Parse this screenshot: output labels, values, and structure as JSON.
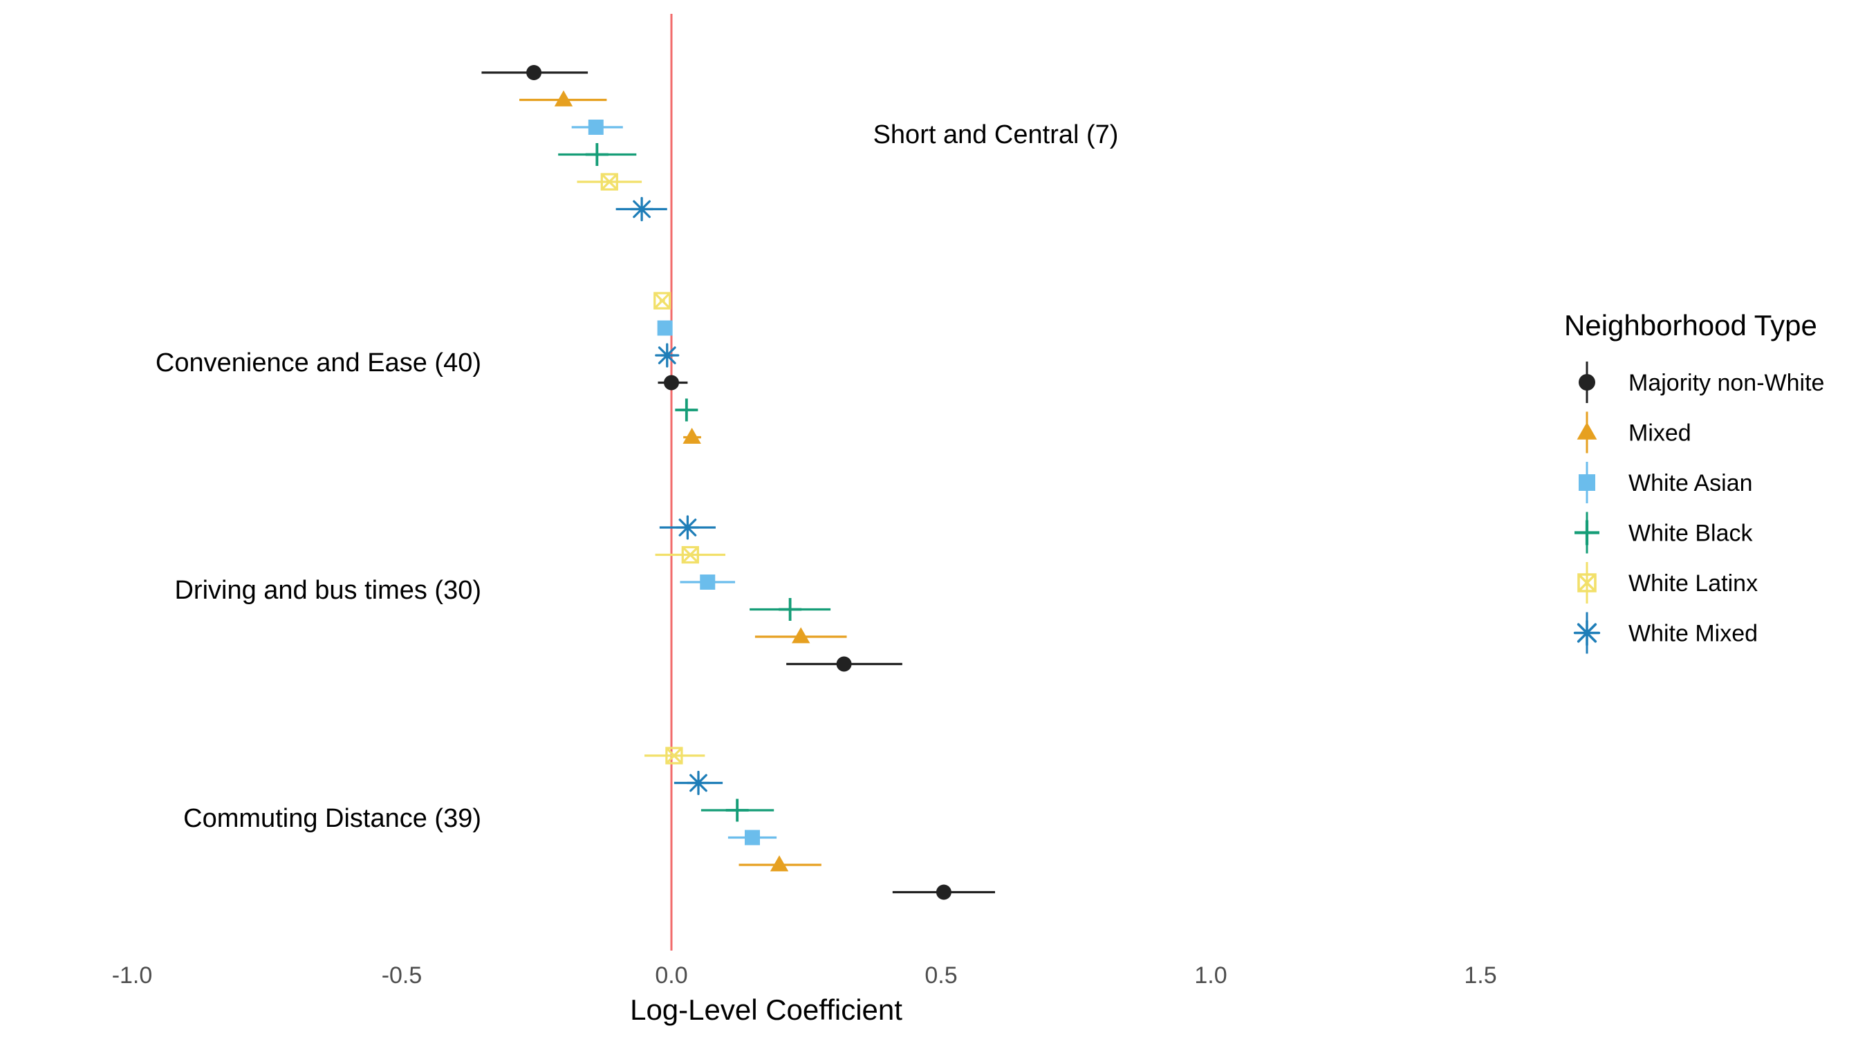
{
  "chart_data": {
    "type": "scatter",
    "subtype": "coefficient-plot",
    "xlabel": "Log-Level Coefficient",
    "ylabel": "",
    "title": "",
    "xlim": [
      -1.0,
      1.5
    ],
    "x_ticks": [
      {
        "value": -1.0,
        "label": "-1.0"
      },
      {
        "value": -0.5,
        "label": "-0.5"
      },
      {
        "value": 0.0,
        "label": "0.0"
      },
      {
        "value": 0.5,
        "label": "0.5"
      },
      {
        "value": 1.0,
        "label": "1.0"
      },
      {
        "value": 1.5,
        "label": "1.5"
      }
    ],
    "reference_line": {
      "x": 0,
      "color": "#f26b6b"
    },
    "grid": false,
    "legend": {
      "title": "Neighborhood Type",
      "position": "right"
    },
    "categories": [
      "Short and Central (7)",
      "Convenience and Ease (40)",
      "Driving and bus times (30)",
      "Commuting Distance (39)"
    ],
    "series": [
      {
        "name": "Majority non-White",
        "color": "#222222",
        "marker": "circle"
      },
      {
        "name": "Mixed",
        "color": "#e6a020",
        "marker": "triangle"
      },
      {
        "name": "White Asian",
        "color": "#6bbdec",
        "marker": "square"
      },
      {
        "name": "White Black",
        "color": "#159d77",
        "marker": "plus"
      },
      {
        "name": "White Latinx",
        "color": "#f2e06a",
        "marker": "boxcross"
      },
      {
        "name": "White Mixed",
        "color": "#1f7eb8",
        "marker": "asterisk"
      }
    ],
    "points": [
      {
        "category": "Short and Central (7)",
        "series": "Majority non-White",
        "estimate": -0.255,
        "low": -0.352,
        "high": -0.155
      },
      {
        "category": "Short and Central (7)",
        "series": "Mixed",
        "estimate": -0.2,
        "low": -0.282,
        "high": -0.12
      },
      {
        "category": "Short and Central (7)",
        "series": "White Asian",
        "estimate": -0.14,
        "low": -0.185,
        "high": -0.09
      },
      {
        "category": "Short and Central (7)",
        "series": "White Black",
        "estimate": -0.138,
        "low": -0.21,
        "high": -0.065
      },
      {
        "category": "Short and Central (7)",
        "series": "White Latinx",
        "estimate": -0.115,
        "low": -0.175,
        "high": -0.055
      },
      {
        "category": "Short and Central (7)",
        "series": "White Mixed",
        "estimate": -0.055,
        "low": -0.103,
        "high": -0.008
      },
      {
        "category": "Convenience and Ease (40)",
        "series": "White Latinx",
        "estimate": -0.017,
        "low": -0.022,
        "high": -0.012
      },
      {
        "category": "Convenience and Ease (40)",
        "series": "White Asian",
        "estimate": -0.012,
        "low": -0.016,
        "high": -0.008
      },
      {
        "category": "Convenience and Ease (40)",
        "series": "White Mixed",
        "estimate": -0.008,
        "low": -0.02,
        "high": 0.005
      },
      {
        "category": "Convenience and Ease (40)",
        "series": "Majority non-White",
        "estimate": 0.0,
        "low": -0.025,
        "high": 0.03
      },
      {
        "category": "Convenience and Ease (40)",
        "series": "White Black",
        "estimate": 0.028,
        "low": 0.015,
        "high": 0.042
      },
      {
        "category": "Convenience and Ease (40)",
        "series": "Mixed",
        "estimate": 0.038,
        "low": 0.022,
        "high": 0.055
      },
      {
        "category": "Driving and bus times (30)",
        "series": "White Mixed",
        "estimate": 0.03,
        "low": -0.022,
        "high": 0.082
      },
      {
        "category": "Driving and bus times (30)",
        "series": "White Latinx",
        "estimate": 0.035,
        "low": -0.03,
        "high": 0.1
      },
      {
        "category": "Driving and bus times (30)",
        "series": "White Asian",
        "estimate": 0.067,
        "low": 0.016,
        "high": 0.118
      },
      {
        "category": "Driving and bus times (30)",
        "series": "White Black",
        "estimate": 0.22,
        "low": 0.145,
        "high": 0.295
      },
      {
        "category": "Driving and bus times (30)",
        "series": "Mixed",
        "estimate": 0.24,
        "low": 0.155,
        "high": 0.325
      },
      {
        "category": "Driving and bus times (30)",
        "series": "Majority non-White",
        "estimate": 0.32,
        "low": 0.213,
        "high": 0.428
      },
      {
        "category": "Commuting Distance (39)",
        "series": "White Latinx",
        "estimate": 0.005,
        "low": -0.05,
        "high": 0.062
      },
      {
        "category": "Commuting Distance (39)",
        "series": "White Mixed",
        "estimate": 0.05,
        "low": 0.005,
        "high": 0.095
      },
      {
        "category": "Commuting Distance (39)",
        "series": "White Black",
        "estimate": 0.122,
        "low": 0.055,
        "high": 0.19
      },
      {
        "category": "Commuting Distance (39)",
        "series": "White Asian",
        "estimate": 0.15,
        "low": 0.105,
        "high": 0.195
      },
      {
        "category": "Commuting Distance (39)",
        "series": "Mixed",
        "estimate": 0.2,
        "low": 0.125,
        "high": 0.278
      },
      {
        "category": "Commuting Distance (39)",
        "series": "Majority non-White",
        "estimate": 0.505,
        "low": 0.41,
        "high": 0.6
      }
    ]
  }
}
